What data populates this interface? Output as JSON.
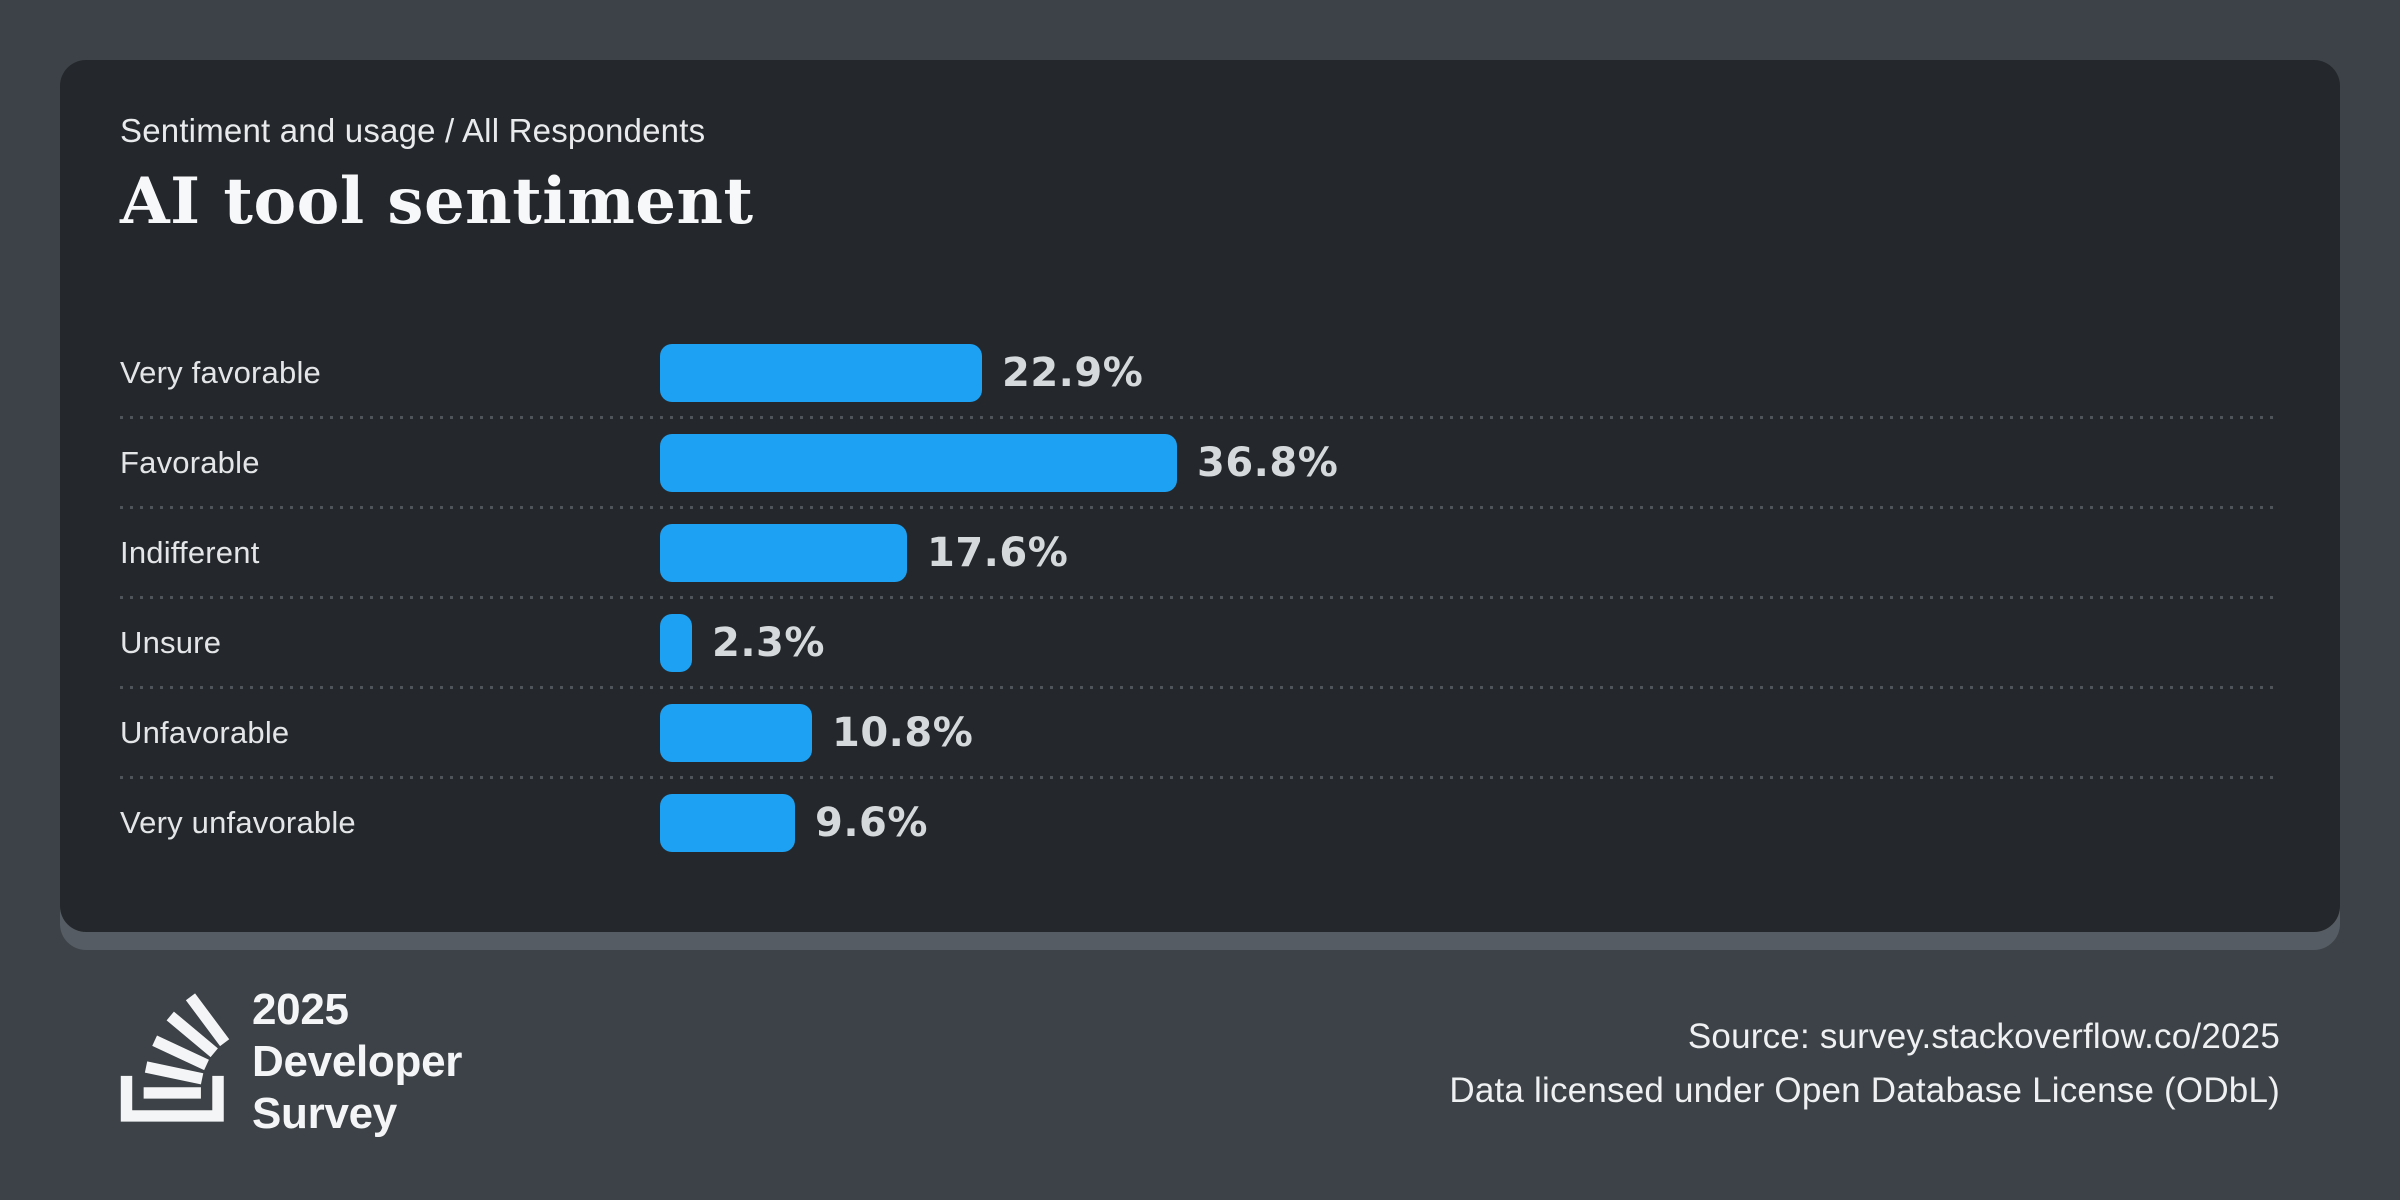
{
  "colors": {
    "background": "#3c4247",
    "card_background": "#24282c",
    "card_shadow": "#565c63",
    "bar": "#1da1f2",
    "separator": "#4e545a",
    "title_text": "#f7f8f9",
    "label_text": "#e3e5e7",
    "value_text": "#d6d9db",
    "footer_text": "#eef0f1"
  },
  "card": {
    "breadcrumb": "Sentiment and usage / All Respondents",
    "title": "AI tool sentiment"
  },
  "chart_data": {
    "type": "bar",
    "orientation": "horizontal",
    "title": "AI tool sentiment",
    "subtitle": "Sentiment and usage / All Respondents",
    "categories": [
      "Very favorable",
      "Favorable",
      "Indifferent",
      "Unsure",
      "Unfavorable",
      "Very unfavorable"
    ],
    "values": [
      22.9,
      36.8,
      17.6,
      2.3,
      10.8,
      9.6
    ],
    "value_suffix": "%",
    "bar_color": "#1da1f2",
    "grid": "dotted-row-separators",
    "legend": "none",
    "axis_labels": "none"
  },
  "footer": {
    "logo_icon": "stackoverflow-logo-icon",
    "logo_lines": [
      "2025",
      "Developer",
      "Survey"
    ],
    "source_line1": "Source: survey.stackoverflow.co/2025",
    "source_line2": "Data licensed under Open Database License (ODbL)"
  }
}
